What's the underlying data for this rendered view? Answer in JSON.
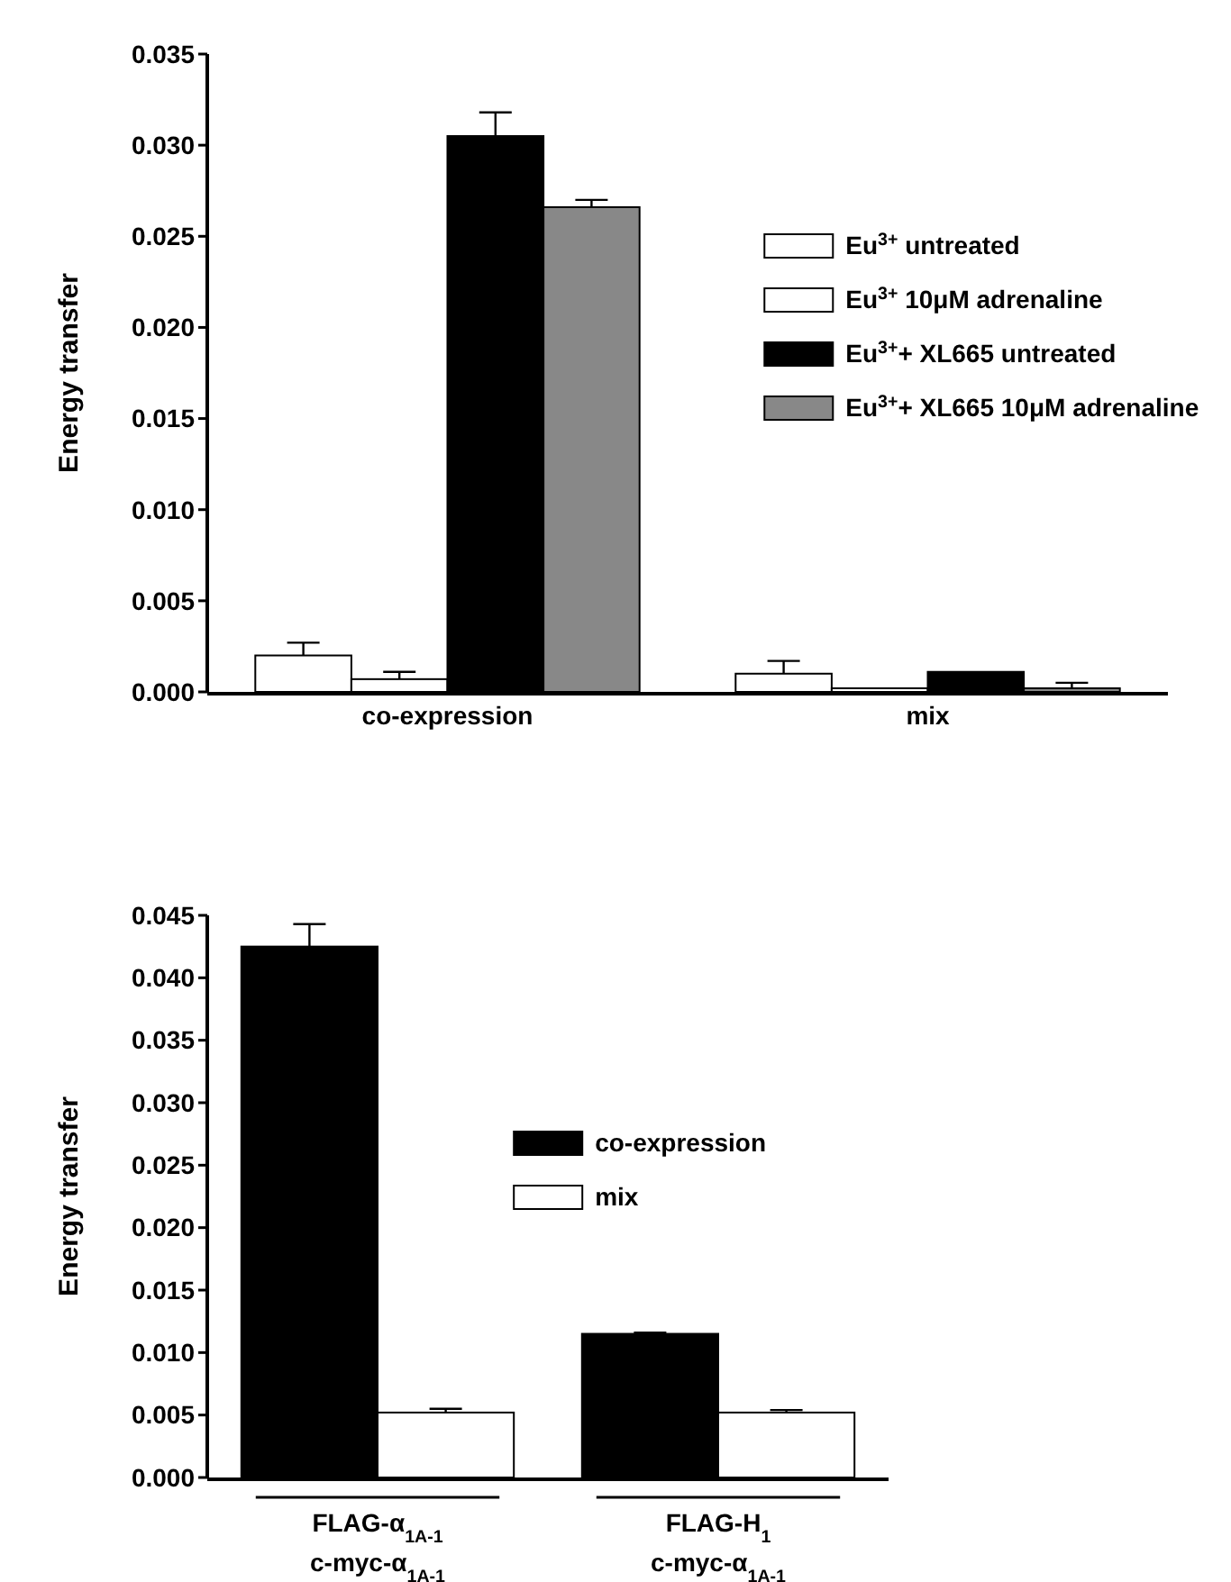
{
  "chart_data": [
    {
      "type": "bar",
      "ylabel": "Energy transfer",
      "categories": [
        "co-expression",
        "mix"
      ],
      "ylim": [
        0,
        0.035
      ],
      "yticks": [
        {
          "value": 0,
          "label": "0.000"
        },
        {
          "value": 0.005,
          "label": "0.005"
        },
        {
          "value": 0.01,
          "label": "0.010"
        },
        {
          "value": 0.015,
          "label": "0.015"
        },
        {
          "value": 0.02,
          "label": "0.020"
        },
        {
          "value": 0.025,
          "label": "0.025"
        },
        {
          "value": 0.03,
          "label": "0.030"
        },
        {
          "value": 0.035,
          "label": "0.035"
        }
      ],
      "legend": "right",
      "grid": false,
      "series": [
        {
          "name": "Eu$^{3+}$ untreated",
          "color": "#ffffff",
          "values": [
            0.002,
            0.001
          ],
          "errors": [
            0.0007,
            0.0007
          ]
        },
        {
          "name": "Eu$^{3+}$ 10μM adrenaline",
          "color": "#ffffff",
          "values": [
            0.0007,
            0.0002
          ],
          "errors": [
            0.0004,
            null
          ]
        },
        {
          "name": "Eu$^{3+}$+ XL665 untreated",
          "color": "#000000",
          "values": [
            0.0305,
            0.0011
          ],
          "errors": [
            0.0013,
            null
          ]
        },
        {
          "name": "Eu$^{3+}$+ XL665 10μM adrenaline",
          "color": "#888888",
          "values": [
            0.0266,
            0.0002
          ],
          "errors": [
            0.0004,
            0.0003
          ]
        }
      ]
    },
    {
      "type": "bar",
      "ylabel": "Energy transfer",
      "categories": [
        "FLAG-α$_{1A-1}$\nc-myc-α$_{1A-1}$",
        "FLAG-H$_{1}$\nc-myc-α$_{1A-1}$"
      ],
      "ylim": [
        0,
        0.045
      ],
      "yticks": [
        {
          "value": 0,
          "label": "0.000"
        },
        {
          "value": 0.005,
          "label": "0.005"
        },
        {
          "value": 0.01,
          "label": "0.010"
        },
        {
          "value": 0.015,
          "label": "0.015"
        },
        {
          "value": 0.02,
          "label": "0.020"
        },
        {
          "value": 0.025,
          "label": "0.025"
        },
        {
          "value": 0.03,
          "label": "0.030"
        },
        {
          "value": 0.035,
          "label": "0.035"
        },
        {
          "value": 0.04,
          "label": "0.040"
        },
        {
          "value": 0.045,
          "label": "0.045"
        }
      ],
      "legend": "center",
      "grid": false,
      "series": [
        {
          "name": "co-expression",
          "color": "#000000",
          "values": [
            0.0425,
            0.0115
          ],
          "errors": [
            0.0018,
            0.0001
          ]
        },
        {
          "name": "mix",
          "color": "#ffffff",
          "values": [
            0.0052,
            0.0052
          ],
          "errors": [
            0.0003,
            0.0002
          ]
        }
      ]
    }
  ]
}
